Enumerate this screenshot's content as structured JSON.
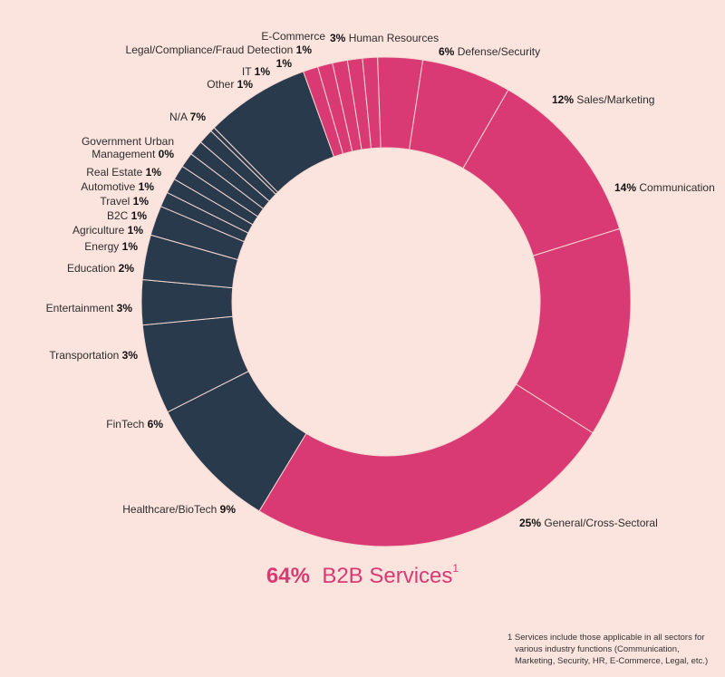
{
  "colors": {
    "b2b": "#d93a74",
    "other": "#293a4d",
    "background": "#fbe3de",
    "separator": "#f5d7d2"
  },
  "chart_data": {
    "type": "pie",
    "subtype": "donut",
    "slices": [
      {
        "name": "Human Resources",
        "pct_label": "3%",
        "value": 3,
        "group": "b2b",
        "label_side": "right-prefix"
      },
      {
        "name": "Defense/Security",
        "pct_label": "6%",
        "value": 6,
        "group": "b2b",
        "label_side": "right-prefix"
      },
      {
        "name": "Sales/Marketing",
        "pct_label": "12%",
        "value": 12,
        "group": "b2b",
        "label_side": "right-prefix"
      },
      {
        "name": "Communication",
        "pct_label": "14%",
        "value": 14,
        "group": "b2b",
        "label_side": "right-prefix"
      },
      {
        "name": "General/Cross-Sectoral",
        "pct_label": "25%",
        "value": 25,
        "group": "b2b",
        "label_side": "right-prefix"
      },
      {
        "name": "Healthcare/BioTech",
        "pct_label": "9%",
        "value": 9,
        "group": "other",
        "label_side": "left"
      },
      {
        "name": "FinTech",
        "pct_label": "6%",
        "value": 6,
        "group": "other",
        "label_side": "left"
      },
      {
        "name": "Transportation",
        "pct_label": "3%",
        "value": 3,
        "group": "other",
        "label_side": "left"
      },
      {
        "name": "Entertainment",
        "pct_label": "3%",
        "value": 3,
        "group": "other",
        "label_side": "left"
      },
      {
        "name": "Education",
        "pct_label": "2%",
        "value": 2,
        "group": "other",
        "label_side": "left"
      },
      {
        "name": "Energy",
        "pct_label": "1%",
        "value": 1,
        "group": "other",
        "label_side": "left"
      },
      {
        "name": "Agriculture",
        "pct_label": "1%",
        "value": 1,
        "group": "other",
        "label_side": "left"
      },
      {
        "name": "B2C",
        "pct_label": "1%",
        "value": 1,
        "group": "other",
        "label_side": "left"
      },
      {
        "name": "Travel",
        "pct_label": "1%",
        "value": 1,
        "group": "other",
        "label_side": "left"
      },
      {
        "name": "Automotive",
        "pct_label": "1%",
        "value": 1,
        "group": "other",
        "label_side": "left"
      },
      {
        "name": "Real Estate",
        "pct_label": "1%",
        "value": 1,
        "group": "other",
        "label_side": "left"
      },
      {
        "name": "Government Urban Management",
        "pct_label": "0%",
        "value": 0.3,
        "group": "other",
        "label_side": "left"
      },
      {
        "name": "N/A",
        "pct_label": "7%",
        "value": 7,
        "group": "other",
        "label_side": "left"
      },
      {
        "name": "Other",
        "pct_label": "1%",
        "value": 1,
        "group": "b2b",
        "label_side": "left"
      },
      {
        "name": "IT",
        "pct_label": "1%",
        "value": 1,
        "group": "b2b",
        "label_side": "left"
      },
      {
        "name": "",
        "pct_label": "1%",
        "value": 1,
        "group": "b2b",
        "label_side": "left"
      },
      {
        "name": "Legal/Compliance/Fraud Detection",
        "pct_label": "1%",
        "value": 1,
        "group": "b2b",
        "label_side": "left"
      },
      {
        "name": "E-Commerce",
        "pct_label": "",
        "value": 1,
        "group": "b2b",
        "label_side": "left"
      }
    ]
  },
  "headline": {
    "pct": "64%",
    "text": "B2B Services",
    "sup": "1"
  },
  "footnote": {
    "line1": "1 Services include those applicable in all sectors for",
    "line2": "various industry functions (Communication,",
    "line3": "Marketing, Security, HR, E-Commerce, Legal, etc.)"
  }
}
